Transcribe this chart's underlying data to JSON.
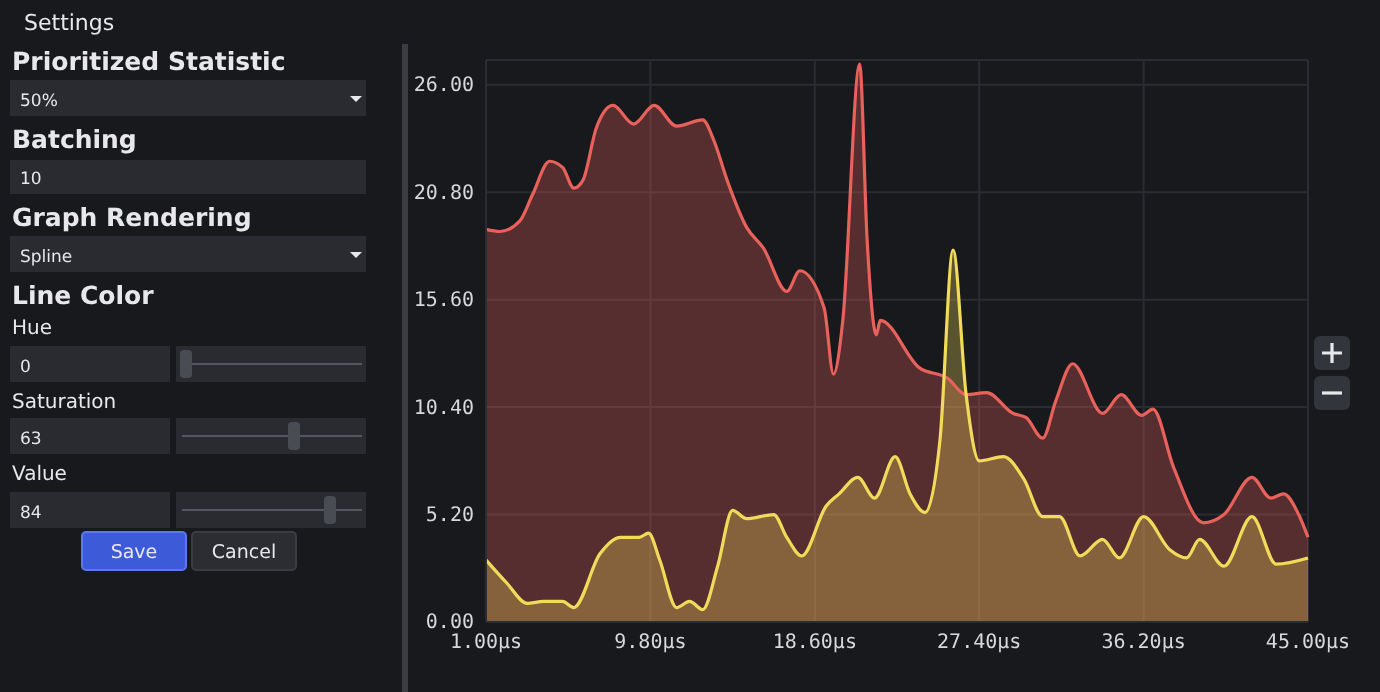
{
  "chart_data": {
    "type": "area",
    "xlim": [
      1,
      45
    ],
    "ylim": [
      0,
      27.2
    ],
    "xticks": [
      {
        "value": 1,
        "label": "1.00µs"
      },
      {
        "value": 9.8,
        "label": "9.80µs"
      },
      {
        "value": 18.6,
        "label": "18.60µs"
      },
      {
        "value": 27.4,
        "label": "27.40µs"
      },
      {
        "value": 36.2,
        "label": "36.20µs"
      },
      {
        "value": 45,
        "label": "45.00µs"
      }
    ],
    "yticks": [
      {
        "value": 0,
        "label": "0.00"
      },
      {
        "value": 5.2,
        "label": "5.20"
      },
      {
        "value": 10.4,
        "label": "10.40"
      },
      {
        "value": 15.6,
        "label": "15.60"
      },
      {
        "value": 20.8,
        "label": "20.80"
      },
      {
        "value": 26,
        "label": "26.00"
      }
    ],
    "grid": true,
    "annotations": [
      "Settings",
      "Prioritized Statistic",
      "50%",
      "Batching",
      "10",
      "Graph Rendering",
      "Spline",
      "Line Color",
      "Hue",
      "0",
      "Saturation",
      "63",
      "Value",
      "84",
      "Save",
      "Cancel"
    ],
    "series": [
      {
        "color": "#e8615a",
        "x": [
          1,
          1.75,
          2.8,
          3.5,
          4.4,
          5.1,
          5.7,
          6.2,
          6.9,
          7.8,
          8.9,
          10,
          11.2,
          12.6,
          13.2,
          13.9,
          14.95,
          15.85,
          17.1,
          17.8,
          19.1,
          19.6,
          20.1,
          21,
          21.4,
          21.9,
          22.1,
          24.2,
          25.7,
          26.7,
          27.8,
          29.2,
          29.9,
          30.8,
          31.5,
          32.4,
          34,
          35,
          36.1,
          36.7,
          37.8,
          39.4,
          40.5,
          42,
          43,
          43.7,
          44.5,
          45
        ],
        "values": [
          19,
          18.9,
          19.4,
          20.7,
          22.3,
          22,
          21,
          21.4,
          23.9,
          25,
          24.1,
          25,
          24,
          24.3,
          23.3,
          21.4,
          19.1,
          18.1,
          16,
          17,
          15.2,
          12,
          14.6,
          27,
          18.5,
          13.9,
          14.6,
          12.3,
          11.8,
          11,
          11.1,
          10.1,
          9.9,
          8.9,
          10.7,
          12.5,
          10.1,
          11,
          10,
          10.3,
          7.5,
          4.8,
          5.2,
          7,
          6,
          6.2,
          5.2,
          4.1
        ]
      },
      {
        "color": "#f2db5a",
        "x": [
          1,
          2.1,
          3.2,
          4.1,
          5.1,
          5.7,
          7.1,
          8.2,
          9.2,
          9.7,
          10.3,
          11.2,
          11.9,
          12.6,
          13.4,
          14.2,
          14.95,
          16.4,
          17.1,
          17.9,
          19.2,
          19.9,
          20.9,
          21.8,
          22.9,
          23.7,
          24.5,
          25.3,
          26,
          26.7,
          27.4,
          28.7,
          29.8,
          30.8,
          31.7,
          32.8,
          34,
          34.9,
          36.2,
          37.6,
          38.5,
          39.2,
          40.5,
          42,
          43.3,
          45
        ],
        "values": [
          3,
          1.9,
          0.9,
          1,
          1,
          0.7,
          3.3,
          4.1,
          4.1,
          4.3,
          3,
          0.7,
          1,
          0.6,
          2.7,
          5.4,
          5,
          5.2,
          4.1,
          3.2,
          5.6,
          6.2,
          7,
          6,
          8,
          6.2,
          5.3,
          8.8,
          18,
          11,
          7.8,
          8,
          6.9,
          5.1,
          5.1,
          3.2,
          4,
          3.1,
          5.1,
          3.5,
          3.1,
          4,
          2.7,
          5.1,
          2.8,
          3.1
        ]
      }
    ]
  }
}
